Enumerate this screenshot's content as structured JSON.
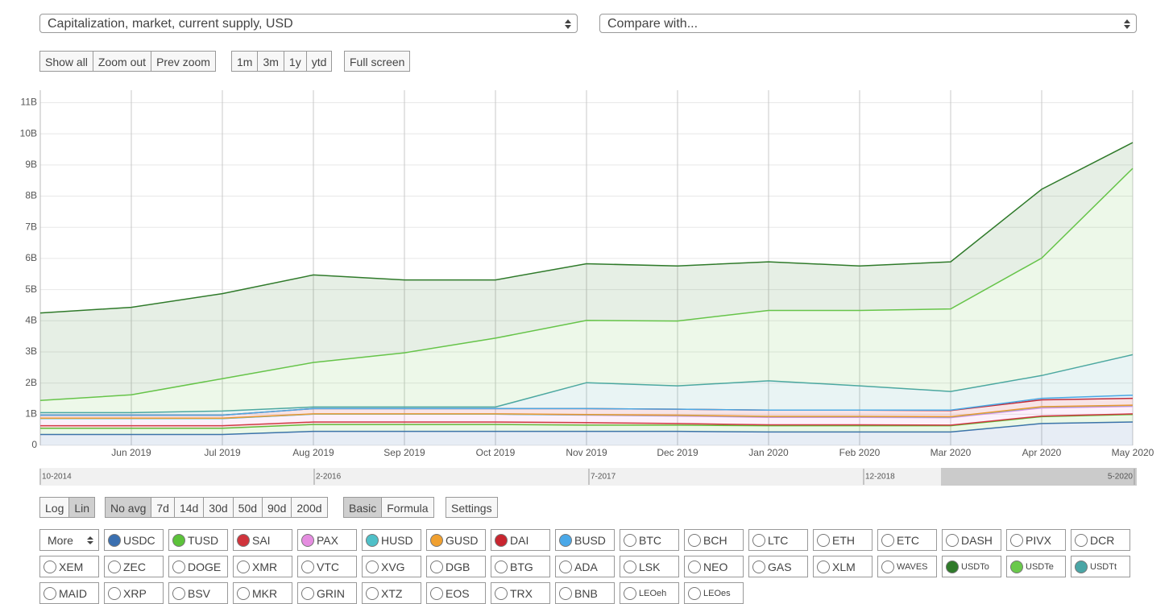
{
  "header": {
    "metric_select": "Capitalization, market, current supply, USD",
    "compare_select": "Compare with..."
  },
  "zoom_buttons": [
    "Show all",
    "Zoom out",
    "Prev zoom"
  ],
  "range_buttons": [
    "1m",
    "3m",
    "1y",
    "ytd"
  ],
  "fullscreen_button": "Full screen",
  "scale_buttons": [
    "Log",
    "Lin"
  ],
  "avg_buttons": [
    "No avg",
    "7d",
    "14d",
    "30d",
    "50d",
    "90d",
    "200d"
  ],
  "mode_buttons": [
    "Basic",
    "Formula"
  ],
  "settings_button": "Settings",
  "more_select": "More",
  "other_coins": [
    "BTC",
    "BCH",
    "LTC",
    "ETH",
    "ETC",
    "DASH",
    "PIVX",
    "DCR",
    "XEM",
    "ZEC",
    "DOGE",
    "XMR",
    "VTC",
    "XVG",
    "DGB",
    "BTG",
    "ADA",
    "LSK",
    "NEO",
    "GAS",
    "XLM",
    "WAVES",
    "MAID",
    "XRP",
    "BSV",
    "MKR",
    "GRIN",
    "XTZ",
    "EOS",
    "TRX",
    "BNB",
    "LEOeh",
    "LEOes"
  ],
  "navigator": {
    "labels": [
      "10-2014",
      "2-2016",
      "7-2017",
      "12-2018",
      "5-2020"
    ]
  },
  "chart_data": {
    "type": "stacked-area",
    "x": [
      "2019-05",
      "2019-06",
      "2019-07",
      "2019-08",
      "2019-09",
      "2019-10",
      "2019-11",
      "2019-12",
      "2020-01",
      "2020-02",
      "2020-03",
      "2020-04",
      "2020-05"
    ],
    "xlim": [
      "2019-05",
      "2020-05"
    ],
    "xticks": [
      {
        "value": "2019-06",
        "label": "Jun 2019"
      },
      {
        "value": "2019-07",
        "label": "Jul 2019"
      },
      {
        "value": "2019-08",
        "label": "Aug 2019"
      },
      {
        "value": "2019-09",
        "label": "Sep 2019"
      },
      {
        "value": "2019-10",
        "label": "Oct 2019"
      },
      {
        "value": "2019-11",
        "label": "Nov 2019"
      },
      {
        "value": "2019-12",
        "label": "Dec 2019"
      },
      {
        "value": "2020-01",
        "label": "Jan 2020"
      },
      {
        "value": "2020-02",
        "label": "Feb 2020"
      },
      {
        "value": "2020-03",
        "label": "Mar 2020"
      },
      {
        "value": "2020-04",
        "label": "Apr 2020"
      },
      {
        "value": "2020-05",
        "label": "May 2020"
      }
    ],
    "ylim": [
      0,
      11400000000
    ],
    "yticks": [
      0,
      {
        "value": 1000000000,
        "label": "1B"
      },
      {
        "value": 2000000000,
        "label": "2B"
      },
      {
        "value": 3000000000,
        "label": "3B"
      },
      {
        "value": 4000000000,
        "label": "4B"
      },
      {
        "value": 5000000000,
        "label": "5B"
      },
      {
        "value": 6000000000,
        "label": "6B"
      },
      {
        "value": 7000000000,
        "label": "7B"
      },
      {
        "value": 8000000000,
        "label": "8B"
      },
      {
        "value": 9000000000,
        "label": "9B"
      },
      {
        "value": 10000000000,
        "label": "10B"
      },
      {
        "value": 11000000000,
        "label": "11B"
      }
    ],
    "grid": true,
    "series": [
      {
        "name": "USDC",
        "color": "#3a6fb0",
        "values": [
          350000000,
          350000000,
          350000000,
          450000000,
          450000000,
          450000000,
          450000000,
          450000000,
          430000000,
          430000000,
          430000000,
          700000000,
          750000000
        ]
      },
      {
        "name": "TUSD",
        "color": "#5cc23a",
        "values": [
          200000000,
          200000000,
          200000000,
          220000000,
          220000000,
          220000000,
          200000000,
          200000000,
          200000000,
          200000000,
          200000000,
          220000000,
          240000000
        ]
      },
      {
        "name": "SAI",
        "color": "#d0343c",
        "values": [
          80000000,
          80000000,
          80000000,
          80000000,
          80000000,
          80000000,
          80000000,
          50000000,
          30000000,
          30000000,
          20000000,
          20000000,
          20000000
        ]
      },
      {
        "name": "PAX",
        "color": "#e58de0",
        "values": [
          230000000,
          230000000,
          230000000,
          250000000,
          250000000,
          250000000,
          240000000,
          240000000,
          240000000,
          240000000,
          240000000,
          260000000,
          240000000
        ]
      },
      {
        "name": "HUSD",
        "color": "#4fc0c8",
        "values": [
          0,
          0,
          0,
          0,
          0,
          0,
          10000000,
          20000000,
          20000000,
          20000000,
          20000000,
          30000000,
          30000000
        ]
      },
      {
        "name": "GUSD",
        "color": "#f0a030",
        "values": [
          10000000,
          10000000,
          10000000,
          10000000,
          10000000,
          10000000,
          10000000,
          10000000,
          10000000,
          10000000,
          10000000,
          10000000,
          10000000
        ]
      },
      {
        "name": "DAI",
        "color": "#c8252f",
        "values": [
          100000000,
          100000000,
          100000000,
          170000000,
          170000000,
          170000000,
          190000000,
          190000000,
          200000000,
          200000000,
          200000000,
          220000000,
          220000000
        ]
      },
      {
        "name": "BUSD",
        "color": "#4aa8e8",
        "values": [
          0,
          0,
          0,
          0,
          0,
          0,
          0,
          0,
          0,
          0,
          10000000,
          50000000,
          100000000
        ]
      },
      {
        "name": "USDTt",
        "color": "#4aa6a6",
        "values": [
          80000000,
          80000000,
          130000000,
          50000000,
          50000000,
          50000000,
          830000000,
          750000000,
          940000000,
          780000000,
          600000000,
          730000000,
          1300000000
        ]
      },
      {
        "name": "USDTe",
        "color": "#6ac94c",
        "values": [
          390000000,
          570000000,
          1040000000,
          1430000000,
          1740000000,
          2210000000,
          2000000000,
          2080000000,
          2260000000,
          2420000000,
          2650000000,
          3770000000,
          5980000000
        ]
      },
      {
        "name": "USDTo",
        "color": "#2f7a2a",
        "values": [
          2810000000,
          2810000000,
          2730000000,
          2810000000,
          2340000000,
          1870000000,
          1820000000,
          1770000000,
          1560000000,
          1430000000,
          1510000000,
          2210000000,
          830000000
        ]
      }
    ]
  }
}
